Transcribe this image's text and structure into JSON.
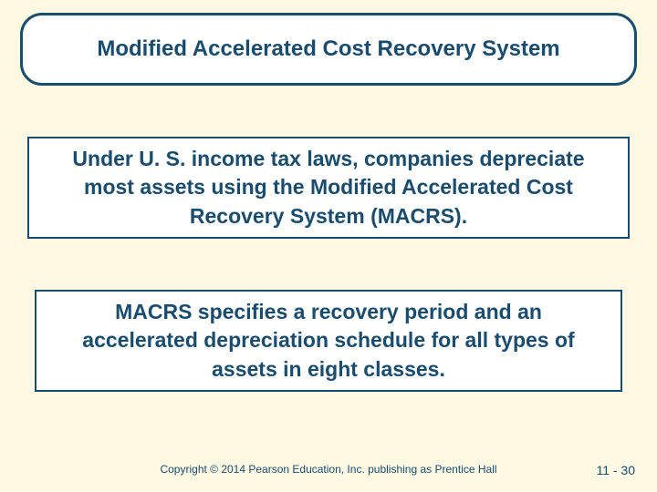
{
  "slide": {
    "background_color": "#fdf9e3",
    "accent_color": "#1a4c6e",
    "box_background": "#ffffff"
  },
  "title": {
    "text": "Modified Accelerated Cost Recovery System",
    "font_size": 24,
    "font_weight": "bold",
    "border_radius": 24,
    "border_width": 3
  },
  "body1": {
    "text": "Under U. S. income tax laws, companies depreciate most assets using the Modified Accelerated Cost Recovery System (MACRS).",
    "font_size": 23,
    "font_weight": "bold",
    "border_width": 2
  },
  "body2": {
    "text": "MACRS specifies a recovery period and an accelerated depreciation schedule for all types of assets in eight classes.",
    "font_size": 23,
    "font_weight": "bold",
    "border_width": 2
  },
  "footer": {
    "copyright": "Copyright © 2014 Pearson Education, Inc. publishing as Prentice Hall",
    "page_number": "11 - 30",
    "copyright_font_size": 12,
    "page_number_font_size": 14
  }
}
